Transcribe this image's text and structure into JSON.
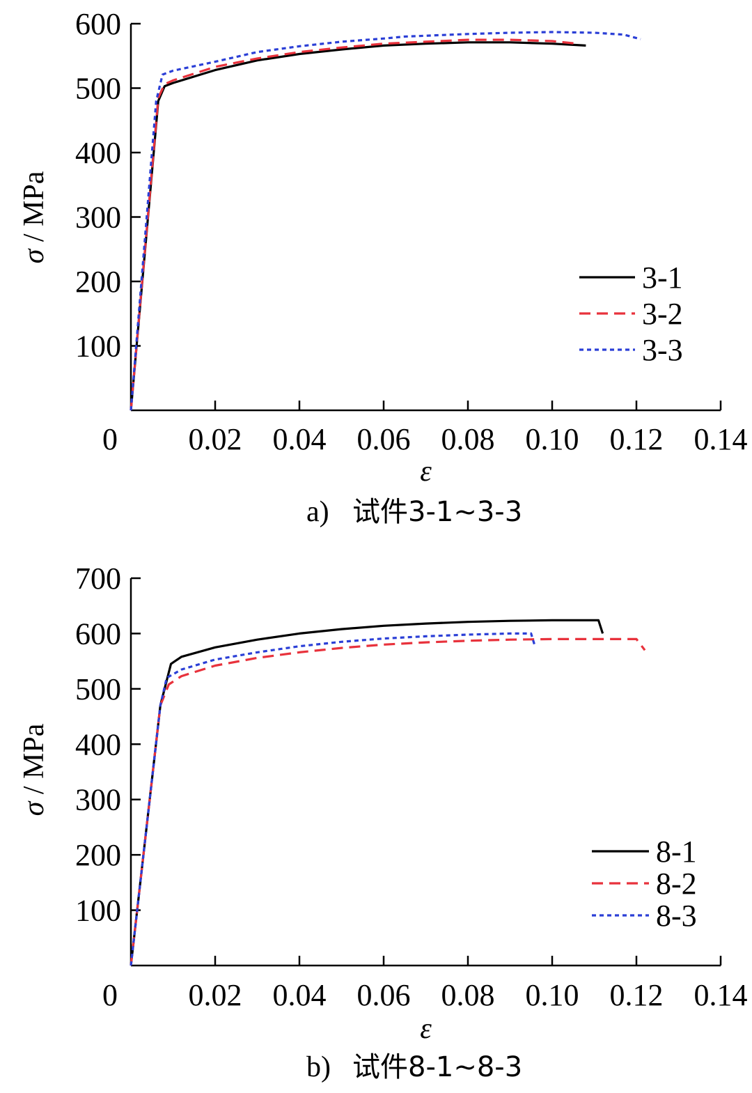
{
  "chart_data": [
    {
      "type": "line",
      "caption_prefix": "a)",
      "caption_text": "试件3-1~3-3",
      "xlabel": "ε",
      "ylabel_symbol": "σ",
      "ylabel_unit": " / MPa",
      "xlim": [
        0,
        0.14
      ],
      "ylim": [
        0,
        600
      ],
      "x_ticks": [
        0,
        0.02,
        0.04,
        0.06,
        0.08,
        0.1,
        0.12,
        0.14
      ],
      "x_tick_labels": [
        "0",
        "0.02",
        "0.04",
        "0.06",
        "0.08",
        "0.10",
        "0.12",
        "0.14"
      ],
      "y_ticks": [
        100,
        200,
        300,
        400,
        500,
        600
      ],
      "y_tick_labels": [
        "100",
        "200",
        "300",
        "400",
        "500",
        "600"
      ],
      "legend_position": "middle-right",
      "series": [
        {
          "name": "3-1",
          "color": "#000000",
          "style": "solid",
          "points": [
            [
              0,
              0
            ],
            [
              0.0065,
              480
            ],
            [
              0.008,
              503
            ],
            [
              0.01,
              508
            ],
            [
              0.02,
              528
            ],
            [
              0.03,
              543
            ],
            [
              0.04,
              553
            ],
            [
              0.05,
              560
            ],
            [
              0.06,
              566
            ],
            [
              0.07,
              569
            ],
            [
              0.08,
              571
            ],
            [
              0.09,
              571
            ],
            [
              0.1,
              569
            ],
            [
              0.108,
              566
            ]
          ]
        },
        {
          "name": "3-2",
          "color": "#e8323c",
          "style": "dashed",
          "points": [
            [
              0,
              0
            ],
            [
              0.0065,
              485
            ],
            [
              0.008,
              506
            ],
            [
              0.01,
              512
            ],
            [
              0.02,
              533
            ],
            [
              0.03,
              546
            ],
            [
              0.04,
              556
            ],
            [
              0.05,
              563
            ],
            [
              0.06,
              569
            ],
            [
              0.07,
              572
            ],
            [
              0.08,
              575
            ],
            [
              0.09,
              575
            ],
            [
              0.1,
              573
            ],
            [
              0.106,
              569
            ]
          ]
        },
        {
          "name": "3-3",
          "color": "#2b3fd6",
          "style": "dotted",
          "points": [
            [
              0,
              0
            ],
            [
              0.006,
              480
            ],
            [
              0.0075,
              521
            ],
            [
              0.01,
              527
            ],
            [
              0.02,
              541
            ],
            [
              0.03,
              556
            ],
            [
              0.04,
              565
            ],
            [
              0.05,
              572
            ],
            [
              0.06,
              577
            ],
            [
              0.065,
              580
            ],
            [
              0.08,
              584
            ],
            [
              0.09,
              586
            ],
            [
              0.1,
              587
            ],
            [
              0.11,
              586
            ],
            [
              0.117,
              583
            ],
            [
              0.121,
              576
            ]
          ]
        }
      ]
    },
    {
      "type": "line",
      "caption_prefix": "b)",
      "caption_text": "试件8-1~8-3",
      "xlabel": "ε",
      "ylabel_symbol": "σ",
      "ylabel_unit": " / MPa",
      "xlim": [
        0,
        0.14
      ],
      "ylim": [
        0,
        700
      ],
      "x_ticks": [
        0,
        0.02,
        0.04,
        0.06,
        0.08,
        0.1,
        0.12,
        0.14
      ],
      "x_tick_labels": [
        "0",
        "0.02",
        "0.04",
        "0.06",
        "0.08",
        "0.10",
        "0.12",
        "0.14"
      ],
      "y_ticks": [
        100,
        200,
        300,
        400,
        500,
        600,
        700
      ],
      "y_tick_labels": [
        "100",
        "200",
        "300",
        "400",
        "500",
        "600",
        "700"
      ],
      "legend_position": "bottom-right",
      "series": [
        {
          "name": "8-1",
          "color": "#000000",
          "style": "solid",
          "points": [
            [
              0,
              0
            ],
            [
              0.007,
              470
            ],
            [
              0.0095,
              545
            ],
            [
              0.012,
              558
            ],
            [
              0.02,
              575
            ],
            [
              0.03,
              589
            ],
            [
              0.04,
              600
            ],
            [
              0.05,
              608
            ],
            [
              0.06,
              614
            ],
            [
              0.07,
              618
            ],
            [
              0.08,
              621
            ],
            [
              0.09,
              623
            ],
            [
              0.1,
              624
            ],
            [
              0.111,
              624
            ],
            [
              0.112,
              600
            ]
          ]
        },
        {
          "name": "8-2",
          "color": "#e8323c",
          "style": "dashed",
          "points": [
            [
              0,
              0
            ],
            [
              0.007,
              470
            ],
            [
              0.009,
              508
            ],
            [
              0.012,
              523
            ],
            [
              0.02,
              542
            ],
            [
              0.03,
              556
            ],
            [
              0.04,
              566
            ],
            [
              0.05,
              574
            ],
            [
              0.06,
              580
            ],
            [
              0.07,
              584
            ],
            [
              0.08,
              587
            ],
            [
              0.09,
              589
            ],
            [
              0.1,
              590
            ],
            [
              0.12,
              590
            ],
            [
              0.122,
              570
            ]
          ]
        },
        {
          "name": "8-3",
          "color": "#2b3fd6",
          "style": "dotted",
          "points": [
            [
              0,
              0
            ],
            [
              0.007,
              470
            ],
            [
              0.0085,
              520
            ],
            [
              0.012,
              535
            ],
            [
              0.02,
              553
            ],
            [
              0.03,
              566
            ],
            [
              0.04,
              577
            ],
            [
              0.05,
              585
            ],
            [
              0.06,
              591
            ],
            [
              0.07,
              595
            ],
            [
              0.08,
              598
            ],
            [
              0.09,
              600
            ],
            [
              0.095,
              600
            ],
            [
              0.096,
              575
            ]
          ]
        }
      ]
    }
  ]
}
